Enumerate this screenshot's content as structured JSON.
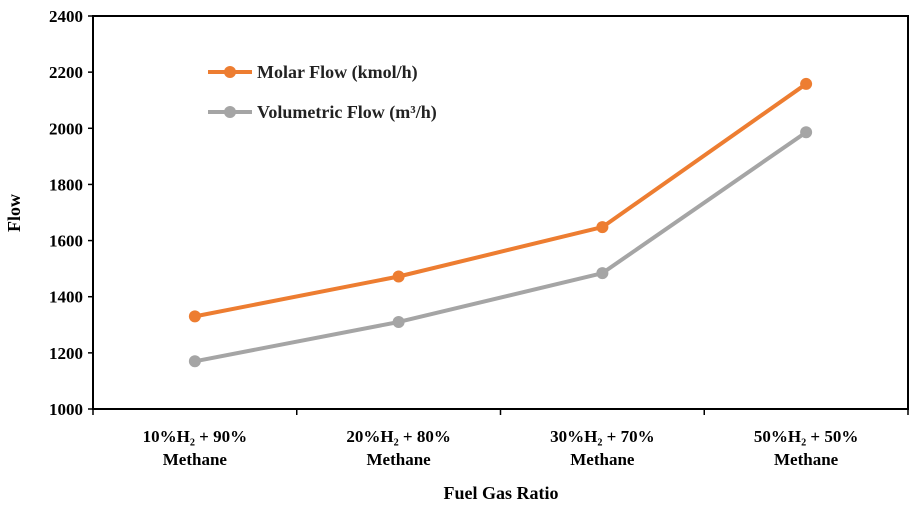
{
  "chart_data": {
    "type": "line",
    "xlabel": "Fuel Gas Ratio",
    "ylabel": "Flow",
    "ylim": [
      1000,
      2400
    ],
    "yticks": [
      1000,
      1200,
      1400,
      1600,
      1800,
      2000,
      2200,
      2400
    ],
    "categories": [
      [
        "10%H₂ + 90%",
        "Methane"
      ],
      [
        "20%H₂ + 80%",
        "Methane"
      ],
      [
        "30%H₂ + 70%",
        "Methane"
      ],
      [
        "50%H₂ + 50%",
        "Methane"
      ]
    ],
    "series": [
      {
        "name": "Molar Flow (kmol/h)",
        "color": "#ED7D31",
        "values": [
          1330,
          1472,
          1648,
          2158
        ]
      },
      {
        "name": "Volumetric Flow (m³/h)",
        "color": "#A5A5A5",
        "values": [
          1170,
          1310,
          1484,
          1986
        ]
      }
    ],
    "legend_position": "top-left",
    "grid": false
  }
}
